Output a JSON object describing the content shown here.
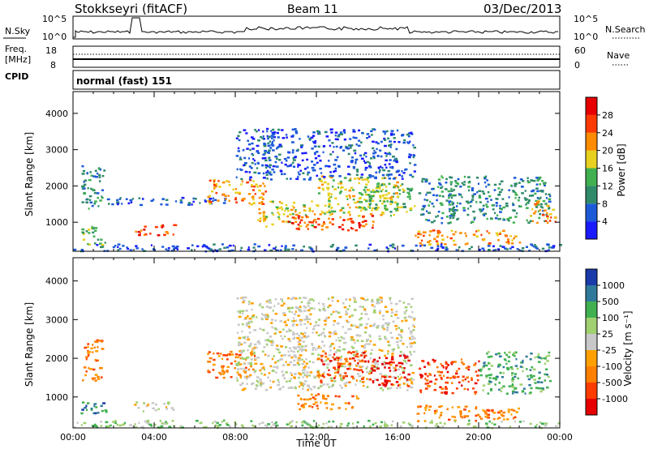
{
  "header": {
    "station": "Stokkseyri (fitACF)",
    "beam": "Beam 11",
    "date": "03/Dec/2013"
  },
  "top_panels": {
    "nsky_label": "N.Sky",
    "nsky_ticks": [
      "10^5",
      "10^0"
    ],
    "nsearch_label": "N.Search",
    "nsearch_ticks": [
      "10^5",
      "10^0"
    ],
    "freq_label": "Freq.",
    "freq_unit": "[MHz]",
    "freq_ticks": [
      "18",
      "8"
    ],
    "nave_label": "Nave",
    "nave_ticks": [
      "60",
      "0"
    ],
    "cpid_label": "CPID",
    "cpid_value": "normal (fast) 151"
  },
  "chart_data": [
    {
      "type": "heatmap",
      "name": "power-panel",
      "ylabel": "Slant Range [km]",
      "yticks": [
        "1000",
        "2000",
        "3000",
        "4000"
      ],
      "ylim": [
        200,
        4600
      ],
      "xlim": [
        0,
        24
      ],
      "colorbar": {
        "label": "Power [dB]",
        "ticks": [
          "4",
          "8",
          "12",
          "16",
          "20",
          "24",
          "28"
        ],
        "colors": [
          "#1a1aff",
          "#1c5ad8",
          "#2f8a6a",
          "#40b050",
          "#e8d020",
          "#ff8c00",
          "#ff3a00",
          "#e60000"
        ]
      },
      "regions": [
        {
          "t0": 0.3,
          "t1": 1.6,
          "r0": 400,
          "r1": 900,
          "level": 3
        },
        {
          "t0": 0.4,
          "t1": 1.5,
          "r0": 1300,
          "r1": 2600,
          "level": 2
        },
        {
          "t0": 1.5,
          "t1": 8.0,
          "r0": 1500,
          "r1": 1700,
          "level": 1
        },
        {
          "t0": 3.0,
          "t1": 5.0,
          "r0": 650,
          "r1": 950,
          "level": 6
        },
        {
          "t0": 6.6,
          "t1": 9.5,
          "r0": 1500,
          "r1": 2200,
          "level": 5
        },
        {
          "t0": 9.0,
          "t1": 12.0,
          "r0": 900,
          "r1": 1600,
          "level": 4
        },
        {
          "t0": 10.5,
          "t1": 15.0,
          "r0": 800,
          "r1": 1200,
          "level": 6
        },
        {
          "t0": 12.0,
          "t1": 16.0,
          "r0": 1200,
          "r1": 2300,
          "level": 4
        },
        {
          "t0": 8.0,
          "t1": 16.8,
          "r0": 2200,
          "r1": 3600,
          "level": 1
        },
        {
          "t0": 14.0,
          "t1": 16.8,
          "r0": 1300,
          "r1": 2100,
          "level": 3
        },
        {
          "t0": 16.8,
          "t1": 22.0,
          "r0": 400,
          "r1": 800,
          "level": 5
        },
        {
          "t0": 17.0,
          "t1": 23.5,
          "r0": 1000,
          "r1": 2300,
          "level": 2
        },
        {
          "t0": 22.5,
          "t1": 23.8,
          "r0": 1000,
          "r1": 1600,
          "level": 5
        },
        {
          "t0": 0.0,
          "t1": 24.0,
          "r0": 220,
          "r1": 420,
          "level": 1
        }
      ]
    },
    {
      "type": "heatmap",
      "name": "velocity-panel",
      "ylabel": "Slant Range [km]",
      "yticks": [
        "1000",
        "2000",
        "3000",
        "4000"
      ],
      "ylim": [
        200,
        4600
      ],
      "xlim": [
        0,
        24
      ],
      "xticks": [
        "00:00",
        "04:00",
        "08:00",
        "12:00",
        "16:00",
        "20:00",
        "00:00"
      ],
      "xlabel": "Time UT",
      "colorbar": {
        "label": "Velocity [m s⁻¹]",
        "ticks": [
          "-1000",
          "-500",
          "-100",
          "-25",
          "25",
          "100",
          "500",
          "1000"
        ],
        "colors": [
          "#e60000",
          "#ff3c00",
          "#ff7f00",
          "#ffa000",
          "#c8c8c8",
          "#a0d070",
          "#40b050",
          "#2f7a9a",
          "#1a3aaa"
        ]
      },
      "regions": [
        {
          "t0": 0.3,
          "t1": 1.6,
          "r0": 600,
          "r1": 900,
          "level": 7
        },
        {
          "t0": 0.4,
          "t1": 1.4,
          "r0": 1400,
          "r1": 2500,
          "level": 2
        },
        {
          "t0": 3.0,
          "t1": 5.0,
          "r0": 650,
          "r1": 900,
          "level": 4
        },
        {
          "t0": 6.6,
          "t1": 9.0,
          "r0": 1500,
          "r1": 2200,
          "level": 2
        },
        {
          "t0": 8.0,
          "t1": 16.8,
          "r0": 1200,
          "r1": 3600,
          "level": 4
        },
        {
          "t0": 12.0,
          "t1": 14.5,
          "r0": 1400,
          "r1": 2200,
          "level": 1
        },
        {
          "t0": 14.5,
          "t1": 16.5,
          "r0": 1300,
          "r1": 2100,
          "level": 0
        },
        {
          "t0": 11.0,
          "t1": 14.0,
          "r0": 700,
          "r1": 1100,
          "level": 2
        },
        {
          "t0": 16.8,
          "t1": 22.0,
          "r0": 400,
          "r1": 800,
          "level": 2
        },
        {
          "t0": 17.0,
          "t1": 20.0,
          "r0": 1100,
          "r1": 2000,
          "level": 1
        },
        {
          "t0": 20.0,
          "t1": 23.5,
          "r0": 1100,
          "r1": 2200,
          "level": 6
        },
        {
          "t0": 0.0,
          "t1": 24.0,
          "r0": 220,
          "r1": 420,
          "level": 5
        }
      ]
    }
  ]
}
